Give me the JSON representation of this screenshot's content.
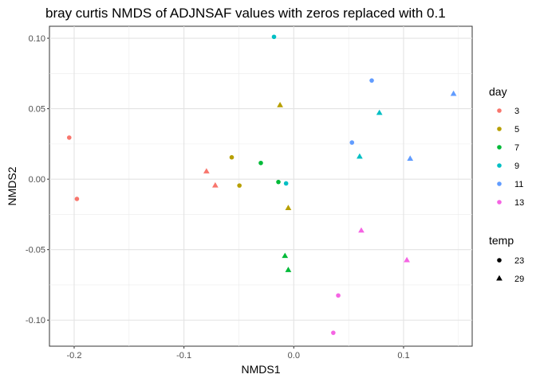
{
  "chart_data": {
    "type": "scatter",
    "title": "bray curtis NMDS of ADJNSAF values with zeros replaced with 0.1",
    "xlabel": "NMDS1",
    "ylabel": "NMDS2",
    "xlim": [
      -0.2225,
      0.1625
    ],
    "ylim": [
      -0.1185,
      0.1085
    ],
    "x_ticks": [
      -0.2,
      -0.1,
      0.0,
      0.1
    ],
    "x_tick_labels": [
      "-0.2",
      "-0.1",
      "0.0",
      "0.1"
    ],
    "y_ticks": [
      -0.1,
      -0.05,
      0.0,
      0.05,
      0.1
    ],
    "y_tick_labels": [
      "-0.10",
      "-0.05",
      "0.00",
      "0.05",
      "0.10"
    ],
    "grid": true,
    "legend_placement": "right",
    "legends": [
      {
        "title": "day",
        "type": "color",
        "items": [
          {
            "label": "3",
            "color": "#F8766D"
          },
          {
            "label": "5",
            "color": "#B79F00"
          },
          {
            "label": "7",
            "color": "#00BA38"
          },
          {
            "label": "9",
            "color": "#00BFC4"
          },
          {
            "label": "11",
            "color": "#619CFF"
          },
          {
            "label": "13",
            "color": "#F564E3"
          }
        ]
      },
      {
        "title": "temp",
        "type": "shape",
        "items": [
          {
            "label": "23",
            "shape": "circle"
          },
          {
            "label": "29",
            "shape": "triangle"
          }
        ]
      }
    ],
    "points": [
      {
        "x": -0.2045,
        "y": 0.0295,
        "day": "3",
        "temp": "23"
      },
      {
        "x": -0.1975,
        "y": -0.014,
        "day": "3",
        "temp": "23"
      },
      {
        "x": -0.0795,
        "y": 0.0055,
        "day": "3",
        "temp": "29"
      },
      {
        "x": -0.0715,
        "y": -0.0045,
        "day": "3",
        "temp": "29"
      },
      {
        "x": -0.0565,
        "y": 0.0155,
        "day": "5",
        "temp": "23"
      },
      {
        "x": -0.0495,
        "y": -0.0045,
        "day": "5",
        "temp": "23"
      },
      {
        "x": -0.0125,
        "y": 0.0525,
        "day": "5",
        "temp": "29"
      },
      {
        "x": -0.005,
        "y": -0.0205,
        "day": "5",
        "temp": "29"
      },
      {
        "x": -0.03,
        "y": 0.0115,
        "day": "7",
        "temp": "23"
      },
      {
        "x": -0.014,
        "y": -0.002,
        "day": "7",
        "temp": "23"
      },
      {
        "x": -0.008,
        "y": -0.0545,
        "day": "7",
        "temp": "29"
      },
      {
        "x": -0.005,
        "y": -0.0645,
        "day": "7",
        "temp": "29"
      },
      {
        "x": -0.018,
        "y": 0.101,
        "day": "9",
        "temp": "23"
      },
      {
        "x": -0.007,
        "y": -0.003,
        "day": "9",
        "temp": "23"
      },
      {
        "x": 0.078,
        "y": 0.047,
        "day": "9",
        "temp": "29"
      },
      {
        "x": 0.06,
        "y": 0.016,
        "day": "9",
        "temp": "29"
      },
      {
        "x": 0.071,
        "y": 0.07,
        "day": "11",
        "temp": "23"
      },
      {
        "x": 0.053,
        "y": 0.026,
        "day": "11",
        "temp": "23"
      },
      {
        "x": 0.1455,
        "y": 0.0605,
        "day": "11",
        "temp": "29"
      },
      {
        "x": 0.106,
        "y": 0.0145,
        "day": "11",
        "temp": "29"
      },
      {
        "x": 0.0615,
        "y": -0.0365,
        "day": "13",
        "temp": "29"
      },
      {
        "x": 0.103,
        "y": -0.0575,
        "day": "13",
        "temp": "29"
      },
      {
        "x": 0.0405,
        "y": -0.0825,
        "day": "13",
        "temp": "23"
      },
      {
        "x": 0.036,
        "y": -0.109,
        "day": "13",
        "temp": "23"
      }
    ]
  }
}
